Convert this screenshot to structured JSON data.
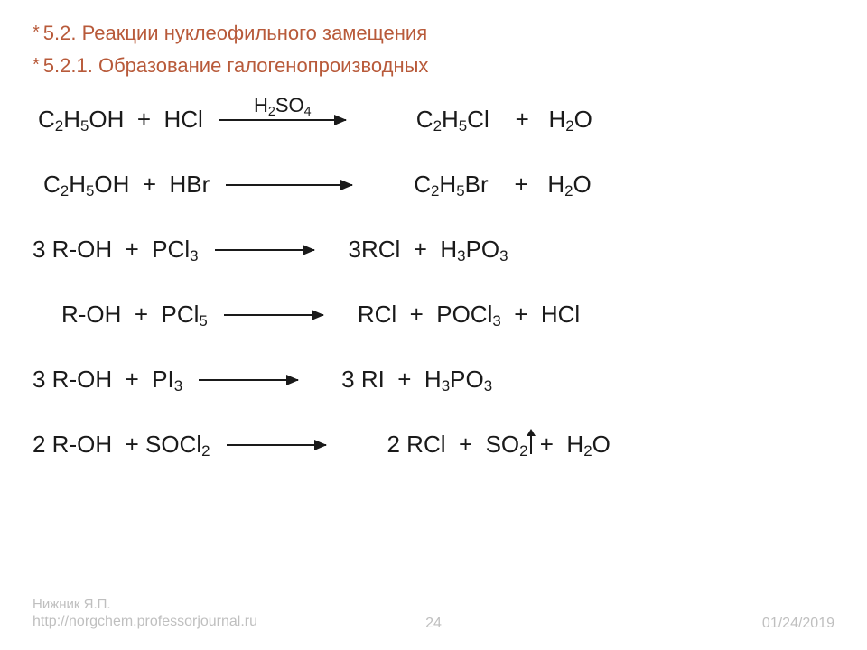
{
  "headings": {
    "h1": "5.2. Реакции нуклеофильного замещения",
    "h2": "5.2.1. Образование галогенопроизводных"
  },
  "colors": {
    "heading": "#b85a3a",
    "text": "#1a1a1a",
    "footer": "#bfbfbf",
    "background": "#ffffff",
    "arrow": "#1a1a1a"
  },
  "typography": {
    "heading_fontsize": 22,
    "equation_fontsize": 26,
    "footer_fontsize": 16,
    "sub_scale": 0.65
  },
  "equations": [
    {
      "lhs_html": "C<sub>2</sub>H<sub>5</sub>OH  +  HCl",
      "arrow_label_html": "H<sub>2</sub>SO<sub>4</sub>",
      "arrow_width": 140,
      "rhs_html": "C<sub>2</sub>H<sub>5</sub>Cl    +   H<sub>2</sub>O",
      "pad_left": 6,
      "gap_after_arrow": 60
    },
    {
      "lhs_html": "C<sub>2</sub>H<sub>5</sub>OH  +  HBr",
      "arrow_label_html": "",
      "arrow_width": 140,
      "rhs_html": "C<sub>2</sub>H<sub>5</sub>Br    +   H<sub>2</sub>O",
      "pad_left": 12,
      "gap_after_arrow": 50
    },
    {
      "lhs_html": "3 R-OH  +  PCl<sub>3</sub>",
      "arrow_label_html": "",
      "arrow_width": 110,
      "rhs_html": "3RCl  +  H<sub>3</sub>PO<sub>3</sub>",
      "pad_left": 0,
      "gap_after_arrow": 20
    },
    {
      "lhs_html": "R-OH  +  PCl<sub>5</sub>",
      "arrow_label_html": "",
      "arrow_width": 110,
      "rhs_html": "RCl  +  POCl<sub>3</sub>  +  HCl",
      "pad_left": 32,
      "gap_after_arrow": 20
    },
    {
      "lhs_html": "3 R-OH  +  PI<sub>3</sub>",
      "arrow_label_html": "",
      "arrow_width": 110,
      "rhs_html": "3 RI  +  H<sub>3</sub>PO<sub>3</sub>",
      "pad_left": 0,
      "gap_after_arrow": 30
    },
    {
      "lhs_html": "2 R-OH  + SOCl<sub>2</sub>",
      "arrow_label_html": "",
      "arrow_width": 110,
      "rhs_html": "2 RCl  +  SO<sub>2</sub><span class=\"gas-arrow\"></span> +  H<sub>2</sub>O",
      "pad_left": 0,
      "gap_after_arrow": 50
    }
  ],
  "footer": {
    "author": "Нижник Я.П.",
    "url": "http://norgchem.professorjournal.ru",
    "page": "24",
    "date": "01/24/2019"
  }
}
